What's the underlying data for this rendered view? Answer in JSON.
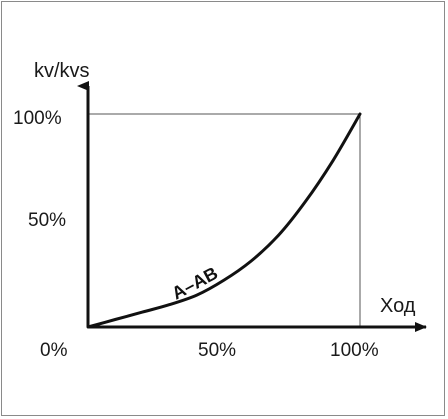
{
  "chart_data": {
    "type": "line",
    "title": "",
    "xlabel": "Ход",
    "ylabel": "kv/kvs",
    "xlim": [
      0,
      100
    ],
    "ylim": [
      0,
      100
    ],
    "x_ticks": [
      "0%",
      "50%",
      "100%"
    ],
    "y_ticks": [
      "100%",
      "50%"
    ],
    "grid": false,
    "series": [
      {
        "name": "A–AB",
        "x": [
          0,
          10,
          20,
          30,
          40,
          50,
          60,
          70,
          80,
          90,
          100
        ],
        "y": [
          0,
          3.5,
          7,
          10.5,
          15,
          22,
          31,
          43,
          59,
          78,
          100
        ]
      }
    ],
    "colors": {
      "line": "#111111",
      "frame": "#8a8a8a"
    }
  }
}
